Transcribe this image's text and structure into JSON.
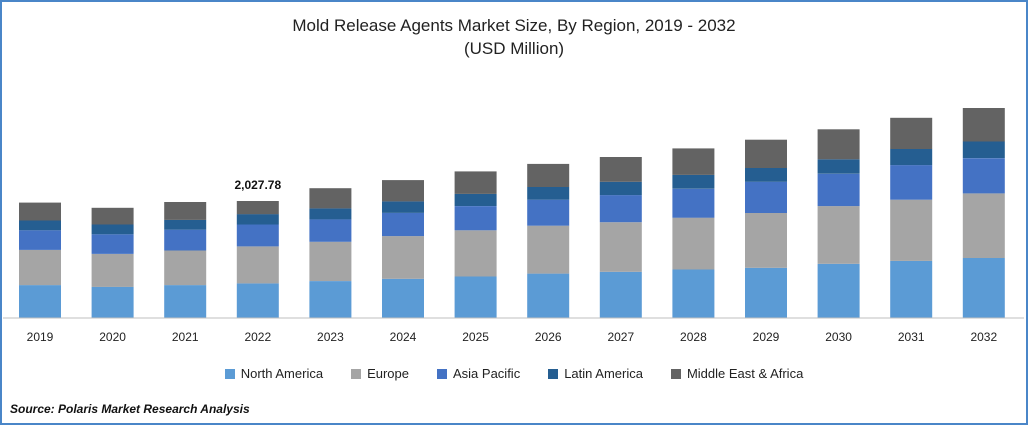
{
  "title": "Mold Release Agents Market Size, By Region, 2019 - 2032",
  "subtitle": "(USD Million)",
  "source": "Source: Polaris  Market Research Analysis",
  "colors": {
    "North America": "#5b9bd5",
    "Europe": "#a5a5a5",
    "Asia Pacific": "#4472c4",
    "Latin America": "#255e91",
    "Middle East & Africa": "#636363"
  },
  "chart_data": {
    "type": "bar",
    "stacked": true,
    "categories": [
      "2019",
      "2020",
      "2021",
      "2022",
      "2023",
      "2024",
      "2025",
      "2026",
      "2027",
      "2028",
      "2029",
      "2030",
      "2031",
      "2032"
    ],
    "series": [
      {
        "name": "North America",
        "values": [
          570,
          540,
          570,
          600,
          640,
          680,
          720,
          770,
          800,
          840,
          870,
          940,
          990,
          1040
        ]
      },
      {
        "name": "Europe",
        "values": [
          610,
          570,
          600,
          640,
          680,
          740,
          800,
          830,
          860,
          900,
          950,
          1000,
          1060,
          1120
        ]
      },
      {
        "name": "Asia Pacific",
        "values": [
          340,
          340,
          360,
          380,
          390,
          400,
          420,
          450,
          470,
          500,
          540,
          560,
          600,
          610
        ]
      },
      {
        "name": "Latin America",
        "values": [
          170,
          170,
          170,
          180,
          190,
          200,
          210,
          220,
          230,
          240,
          240,
          250,
          280,
          290
        ]
      },
      {
        "name": "Middle East & Africa",
        "values": [
          310,
          290,
          310,
          228,
          350,
          370,
          390,
          400,
          430,
          460,
          490,
          520,
          540,
          580
        ]
      }
    ],
    "annotation": {
      "category": "2022",
      "label": "2,027.78"
    },
    "ylim": [
      0,
      4000
    ],
    "legend": "bottom",
    "grid": false
  }
}
